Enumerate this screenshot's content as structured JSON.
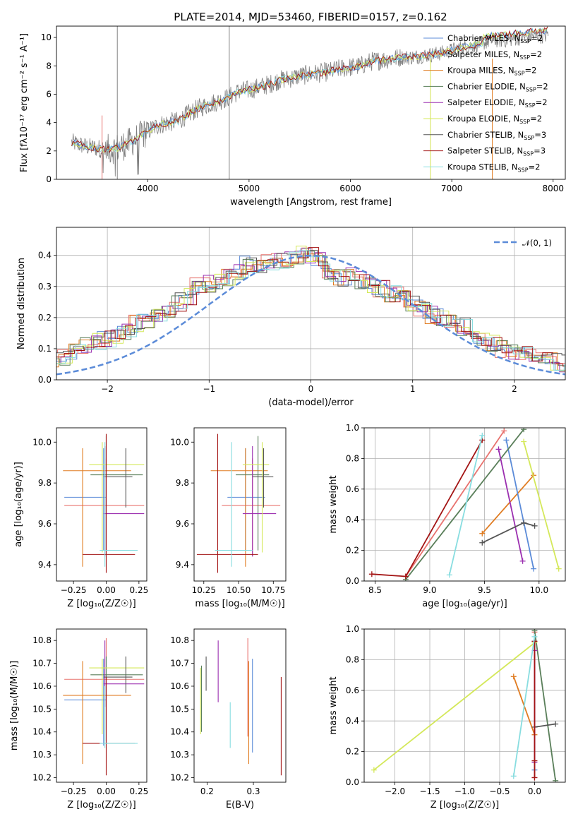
{
  "figure_title": "PLATE=2014, MJD=53460, FIBERID=0157, z=0.162",
  "colors": {
    "data_spectrum": "#7f7f7f",
    "gaussian": "#5b8bd8",
    "grid": "#b0b0b0",
    "Chabrier MILES": "#5b8bd8",
    "Salpeter MILES": "#e8736f",
    "Kroupa MILES": "#e07b20",
    "Chabrier ELODIE": "#5a7f5a",
    "Salpeter ELODIE": "#9b2fb0",
    "Kroupa ELODIE": "#d4e85a",
    "Chabrier STELIB": "#555555",
    "Salpeter STELIB": "#a31414",
    "Kroupa STELIB": "#88dde0"
  },
  "chart_data": [
    {
      "id": "spectrum",
      "type": "line",
      "xlabel": "wavelength [Angstrom, rest frame]",
      "ylabel": "Flux [fλ10⁻¹⁷ erg cm⁻² s⁻¹ A⁻¹]",
      "xlim": [
        3100,
        8120
      ],
      "ylim": [
        0,
        10.8
      ],
      "xticks": [
        4000,
        5000,
        6000,
        7000,
        8000
      ],
      "yticks": [
        0,
        2,
        4,
        6,
        8,
        10
      ],
      "grid": false,
      "legend_position": "top-right",
      "legend": [
        {
          "label": "Chabrier MILES, N",
          "sub": "SSP",
          "rest": "=2",
          "color": "#5b8bd8"
        },
        {
          "label": "Salpeter MILES, N",
          "sub": "SSP",
          "rest": "=2",
          "color": "#e8736f"
        },
        {
          "label": "Kroupa MILES, N",
          "sub": "SSP",
          "rest": "=2",
          "color": "#e07b20"
        },
        {
          "label": "Chabrier ELODIE, N",
          "sub": "SSP",
          "rest": "=2",
          "color": "#5a7f5a"
        },
        {
          "label": "Salpeter ELODIE, N",
          "sub": "SSP",
          "rest": "=2",
          "color": "#9b2fb0"
        },
        {
          "label": "Kroupa ELODIE, N",
          "sub": "SSP",
          "rest": "=2",
          "color": "#d4e85a"
        },
        {
          "label": "Chabrier STELIB, N",
          "sub": "SSP",
          "rest": "=3",
          "color": "#555555"
        },
        {
          "label": "Salpeter STELIB, N",
          "sub": "SSP",
          "rest": "=3",
          "color": "#a31414"
        },
        {
          "label": "Kroupa STELIB, N",
          "sub": "SSP",
          "rest": "=2",
          "color": "#88dde0"
        }
      ],
      "continuum_x": [
        3250,
        3400,
        3500,
        3600,
        3700,
        3800,
        3900,
        4000,
        4100,
        4200,
        4300,
        4400,
        4500,
        4600,
        4700,
        4800,
        4900,
        5000,
        5100,
        5200,
        5300,
        5400,
        5500,
        5600,
        5700,
        5800,
        5900,
        6000,
        6100,
        6200,
        6300,
        6400,
        6500,
        6600,
        6700,
        6800,
        6900,
        7000,
        7100,
        7200,
        7300,
        7400,
        7500,
        7600,
        7700,
        7800,
        7900,
        7950
      ],
      "continuum_y": [
        2.6,
        2.3,
        2.2,
        2.1,
        2.2,
        2.5,
        2.9,
        3.4,
        3.8,
        4.0,
        4.1,
        4.6,
        5.0,
        5.3,
        5.5,
        5.8,
        6.2,
        6.3,
        6.5,
        6.7,
        7.0,
        7.1,
        7.3,
        7.4,
        7.5,
        7.6,
        7.8,
        7.9,
        8.0,
        8.3,
        8.4,
        8.5,
        8.6,
        8.6,
        8.7,
        8.8,
        8.9,
        9.1,
        9.3,
        9.4,
        9.6,
        9.8,
        9.8,
        9.9,
        10.0,
        10.1,
        10.1,
        10.2
      ]
    },
    {
      "id": "residuals",
      "type": "histogram",
      "xlabel": "(data-model)/error",
      "ylabel": "Normed distribution",
      "xlim": [
        -2.5,
        2.5
      ],
      "ylim": [
        0,
        0.49
      ],
      "xticks": [
        -2,
        -1,
        0,
        1,
        2
      ],
      "yticks": [
        0.0,
        0.1,
        0.2,
        0.3,
        0.4
      ],
      "grid": true,
      "legend_position": "top-right",
      "legend": [
        {
          "label": "𝒩(0, 1)",
          "color": "#5b8bd8",
          "style": "dashed"
        }
      ],
      "bin_width": 0.1,
      "bin_start": -2.5,
      "base_values": [
        0.04,
        0.045,
        0.05,
        0.065,
        0.07,
        0.075,
        0.09,
        0.11,
        0.12,
        0.135,
        0.14,
        0.15,
        0.18,
        0.185,
        0.2,
        0.22,
        0.25,
        0.27,
        0.3,
        0.31,
        0.32,
        0.33,
        0.35,
        0.37,
        0.37,
        0.38,
        0.38,
        0.39,
        0.4,
        0.4,
        0.38,
        0.34,
        0.33,
        0.33,
        0.32,
        0.31,
        0.29,
        0.28,
        0.27,
        0.25,
        0.23,
        0.21,
        0.2,
        0.18,
        0.17,
        0.15,
        0.13,
        0.12,
        0.1,
        0.09,
        0.08,
        0.07,
        0.06,
        0.06,
        0.05,
        0.05,
        0.04,
        0.04,
        0.03,
        0.03
      ]
    },
    {
      "id": "age_vs_Z",
      "type": "errorbar",
      "xlabel": "Z [log₁₀(Z/Z☉)]",
      "ylabel": "age  [log₁₀(age/yr)]",
      "xlim": [
        -0.38,
        0.31
      ],
      "ylim": [
        9.32,
        10.07
      ],
      "xticks": [
        -0.25,
        0.0,
        0.25
      ],
      "xticklabels": [
        "−0.25",
        "0.00",
        "0.25"
      ],
      "yticks": [
        9.4,
        9.6,
        9.8,
        10.0
      ],
      "points": [
        {
          "s": "Chabrier MILES",
          "x": -0.02,
          "y": 9.73,
          "xe": [
            -0.32,
            0.0
          ],
          "ye": [
            9.47,
            9.97
          ]
        },
        {
          "s": "Salpeter MILES",
          "x": 0.0,
          "y": 9.69,
          "xe": [
            -0.32,
            0.29
          ],
          "ye": [
            9.44,
            9.92
          ]
        },
        {
          "s": "Kroupa MILES",
          "x": -0.18,
          "y": 9.86,
          "xe": [
            -0.33,
            0.19
          ],
          "ye": [
            9.39,
            9.97
          ]
        },
        {
          "s": "Chabrier ELODIE",
          "x": 0.0,
          "y": 9.84,
          "xe": [
            -0.12,
            0.28
          ],
          "ye": [
            9.47,
            10.03
          ]
        },
        {
          "s": "Salpeter ELODIE",
          "x": -0.01,
          "y": 9.65,
          "xe": [
            -0.02,
            0.29
          ],
          "ye": [
            9.44,
            9.98
          ]
        },
        {
          "s": "Kroupa ELODIE",
          "x": -0.03,
          "y": 9.89,
          "xe": [
            -0.13,
            0.29
          ],
          "ye": [
            9.46,
            10.0
          ]
        },
        {
          "s": "Chabrier STELIB",
          "x": 0.15,
          "y": 9.83,
          "xe": [
            -0.02,
            0.2
          ],
          "ye": [
            9.68,
            9.97
          ]
        },
        {
          "s": "Salpeter STELIB",
          "x": 0.0,
          "y": 9.45,
          "xe": [
            -0.18,
            0.22
          ],
          "ye": [
            9.36,
            10.04
          ]
        },
        {
          "s": "Kroupa STELIB",
          "x": -0.01,
          "y": 9.47,
          "xe": [
            -0.05,
            0.24
          ],
          "ye": [
            9.39,
            10.0
          ]
        }
      ]
    },
    {
      "id": "age_vs_mass",
      "type": "errorbar",
      "xlabel": "mass [log₁₀(M/M☉)]",
      "ylabel": "",
      "xlim": [
        10.18,
        10.84
      ],
      "ylim": [
        9.32,
        10.07
      ],
      "xticks": [
        10.25,
        10.5,
        10.75
      ],
      "xticklabels": [
        "10.25",
        "10.50",
        "10.75"
      ],
      "yticks": [
        9.4,
        9.6,
        9.8,
        10.0
      ],
      "points": [
        {
          "s": "Chabrier MILES",
          "x": 10.55,
          "y": 9.73,
          "xe": [
            10.42,
            10.69
          ],
          "ye": [
            9.47,
            9.97
          ]
        },
        {
          "s": "Salpeter MILES",
          "x": 10.6,
          "y": 9.69,
          "xe": [
            10.38,
            10.8
          ],
          "ye": [
            9.44,
            9.92
          ]
        },
        {
          "s": "Kroupa MILES",
          "x": 10.55,
          "y": 9.86,
          "xe": [
            10.3,
            10.71
          ],
          "ye": [
            9.39,
            9.97
          ]
        },
        {
          "s": "Chabrier ELODIE",
          "x": 10.64,
          "y": 9.84,
          "xe": [
            10.48,
            10.72
          ],
          "ye": [
            9.47,
            10.03
          ]
        },
        {
          "s": "Salpeter ELODIE",
          "x": 10.6,
          "y": 9.65,
          "xe": [
            10.53,
            10.77
          ],
          "ye": [
            9.44,
            9.98
          ]
        },
        {
          "s": "Kroupa ELODIE",
          "x": 10.67,
          "y": 9.89,
          "xe": [
            10.53,
            10.72
          ],
          "ye": [
            9.46,
            10.0
          ]
        },
        {
          "s": "Chabrier STELIB",
          "x": 10.68,
          "y": 9.83,
          "xe": [
            10.6,
            10.75
          ],
          "ye": [
            9.68,
            9.97
          ]
        },
        {
          "s": "Salpeter STELIB",
          "x": 10.35,
          "y": 9.45,
          "xe": [
            10.2,
            10.64
          ],
          "ye": [
            9.36,
            10.04
          ]
        },
        {
          "s": "Kroupa STELIB",
          "x": 10.45,
          "y": 9.47,
          "xe": [
            10.33,
            10.6
          ],
          "ye": [
            9.39,
            10.0
          ]
        }
      ]
    },
    {
      "id": "weight_vs_age",
      "type": "line",
      "xlabel": "age  [log₁₀(age/yr)]",
      "ylabel": "mass weight",
      "xlim": [
        8.4,
        10.24
      ],
      "ylim": [
        0,
        1
      ],
      "xticks": [
        8.5,
        9.0,
        9.5,
        10.0
      ],
      "xticklabels": [
        "8.5",
        "9.0",
        "9.5",
        "10.0"
      ],
      "yticks": [
        0.0,
        0.2,
        0.4,
        0.6,
        0.8,
        1.0
      ],
      "grid": true,
      "series": [
        {
          "s": "Kroupa MILES",
          "x": [
            9.48,
            9.95
          ],
          "y": [
            0.31,
            0.69
          ]
        },
        {
          "s": "Chabrier MILES",
          "x": [
            9.7,
            9.95
          ],
          "y": [
            0.92,
            0.08
          ]
        },
        {
          "s": "Salpeter MILES",
          "x": [
            8.78,
            9.68
          ],
          "y": [
            0.03,
            0.98
          ]
        },
        {
          "s": "Chabrier ELODIE",
          "x": [
            8.78,
            9.86
          ],
          "y": [
            0.01,
            0.99
          ]
        },
        {
          "s": "Salpeter ELODIE",
          "x": [
            9.63,
            9.85
          ],
          "y": [
            0.86,
            0.13
          ]
        },
        {
          "s": "Kroupa ELODIE",
          "x": [
            9.86,
            10.18
          ],
          "y": [
            0.91,
            0.08
          ]
        },
        {
          "s": "Chabrier STELIB",
          "x": [
            9.48,
            9.86,
            9.96
          ],
          "y": [
            0.25,
            0.38,
            0.36
          ]
        },
        {
          "s": "Salpeter STELIB",
          "x": [
            8.47,
            8.78,
            9.48
          ],
          "y": [
            0.045,
            0.03,
            0.92
          ]
        },
        {
          "s": "Kroupa STELIB",
          "x": [
            9.18,
            9.48
          ],
          "y": [
            0.04,
            0.95
          ]
        }
      ]
    },
    {
      "id": "mass_vs_Z",
      "type": "errorbar",
      "xlabel": "Z [log₁₀(Z/Z☉)]",
      "ylabel": "mass [log₁₀(M/M☉)]",
      "xlim": [
        -0.38,
        0.31
      ],
      "ylim": [
        10.18,
        10.85
      ],
      "xticks": [
        -0.25,
        0.0,
        0.25
      ],
      "xticklabels": [
        "−0.25",
        "0.00",
        "0.25"
      ],
      "yticks": [
        10.2,
        10.3,
        10.4,
        10.5,
        10.6,
        10.7,
        10.8
      ],
      "points": [
        {
          "s": "Chabrier MILES",
          "x": -0.02,
          "y": 10.54,
          "xe": [
            -0.32,
            0.0
          ],
          "ye": [
            10.34,
            10.72
          ]
        },
        {
          "s": "Salpeter MILES",
          "x": 0.0,
          "y": 10.63,
          "xe": [
            -0.32,
            0.29
          ],
          "ye": [
            10.41,
            10.81
          ]
        },
        {
          "s": "Kroupa MILES",
          "x": -0.18,
          "y": 10.56,
          "xe": [
            -0.33,
            0.19
          ],
          "ye": [
            10.26,
            10.71
          ]
        },
        {
          "s": "Chabrier ELODIE",
          "x": 0.0,
          "y": 10.65,
          "xe": [
            -0.12,
            0.28
          ],
          "ye": [
            10.36,
            10.73
          ]
        },
        {
          "s": "Salpeter ELODIE",
          "x": -0.01,
          "y": 10.61,
          "xe": [
            -0.02,
            0.29
          ],
          "ye": [
            10.51,
            10.8
          ]
        },
        {
          "s": "Kroupa ELODIE",
          "x": -0.03,
          "y": 10.68,
          "xe": [
            -0.13,
            0.29
          ],
          "ye": [
            10.39,
            10.72
          ]
        },
        {
          "s": "Chabrier STELIB",
          "x": 0.15,
          "y": 10.64,
          "xe": [
            -0.02,
            0.2
          ],
          "ye": [
            10.57,
            10.73
          ]
        },
        {
          "s": "Salpeter STELIB",
          "x": 0.0,
          "y": 10.35,
          "xe": [
            -0.18,
            0.22
          ],
          "ye": [
            10.21,
            10.64
          ]
        },
        {
          "s": "Kroupa STELIB",
          "x": -0.01,
          "y": 10.35,
          "xe": [
            -0.05,
            0.24
          ],
          "ye": [
            10.33,
            10.6
          ]
        }
      ]
    },
    {
      "id": "mass_vs_ebv",
      "type": "errorbar",
      "xlabel": "E(B-V)",
      "ylabel": "",
      "xlim": [
        0.172,
        0.37
      ],
      "ylim": [
        10.18,
        10.85
      ],
      "xticks": [
        0.2,
        0.3
      ],
      "xticklabels": [
        "0.2",
        "0.3"
      ],
      "yticks": [
        10.2,
        10.3,
        10.4,
        10.5,
        10.6,
        10.7,
        10.8
      ],
      "points": [
        {
          "s": "Kroupa ELODIE",
          "x": 0.186,
          "ye": [
            10.39,
            10.68
          ]
        },
        {
          "s": "Chabrier ELODIE",
          "x": 0.188,
          "ye": [
            10.4,
            10.69
          ]
        },
        {
          "s": "Chabrier STELIB",
          "x": 0.198,
          "ye": [
            10.58,
            10.73
          ]
        },
        {
          "s": "Salpeter ELODIE",
          "x": 0.224,
          "ye": [
            10.53,
            10.8
          ]
        },
        {
          "s": "Kroupa STELIB",
          "x": 0.25,
          "ye": [
            10.33,
            10.53
          ]
        },
        {
          "s": "Salpeter MILES",
          "x": 0.288,
          "ye": [
            10.38,
            10.81
          ]
        },
        {
          "s": "Kroupa MILES",
          "x": 0.29,
          "ye": [
            10.26,
            10.71
          ]
        },
        {
          "s": "Chabrier MILES",
          "x": 0.298,
          "ye": [
            10.31,
            10.72
          ]
        },
        {
          "s": "Salpeter STELIB",
          "x": 0.36,
          "ye": [
            10.21,
            10.64
          ]
        }
      ]
    },
    {
      "id": "weight_vs_Z",
      "type": "line",
      "xlabel": "Z [log₁₀(Z/Z☉)]",
      "ylabel": "mass weight",
      "xlim": [
        -2.44,
        0.44
      ],
      "ylim": [
        0,
        1
      ],
      "xticks": [
        -2.0,
        -1.5,
        -1.0,
        -0.5,
        0.0
      ],
      "xticklabels": [
        "−2.0",
        "−1.5",
        "−1.0",
        "−0.5",
        "0.0"
      ],
      "yticks": [
        0.0,
        0.2,
        0.4,
        0.6,
        0.8,
        1.0
      ],
      "grid": true,
      "series": [
        {
          "s": "Kroupa MILES",
          "x": [
            -0.3,
            0.0
          ],
          "y": [
            0.69,
            0.31
          ]
        },
        {
          "s": "Salpeter MILES",
          "x": [
            0.0,
            0.0
          ],
          "y": [
            0.03,
            0.98
          ]
        },
        {
          "s": "Chabrier MILES",
          "x": [
            0.0,
            0.0
          ],
          "y": [
            0.08,
            0.92
          ]
        },
        {
          "s": "Chabrier ELODIE",
          "x": [
            0.0,
            0.3
          ],
          "y": [
            0.99,
            0.01
          ]
        },
        {
          "s": "Salpeter ELODIE",
          "x": [
            0.0,
            0.0
          ],
          "y": [
            0.13,
            0.86
          ]
        },
        {
          "s": "Kroupa ELODIE",
          "x": [
            -2.3,
            0.0
          ],
          "y": [
            0.08,
            0.91
          ]
        },
        {
          "s": "Chabrier STELIB",
          "x": [
            0.0,
            0.3
          ],
          "y": [
            0.36,
            0.38
          ]
        },
        {
          "s": "Salpeter STELIB",
          "x": [
            0.0,
            0.0,
            0.0
          ],
          "y": [
            0.03,
            0.14,
            0.92
          ]
        },
        {
          "s": "Kroupa STELIB",
          "x": [
            -0.3,
            0.0
          ],
          "y": [
            0.04,
            0.95
          ]
        }
      ]
    }
  ]
}
